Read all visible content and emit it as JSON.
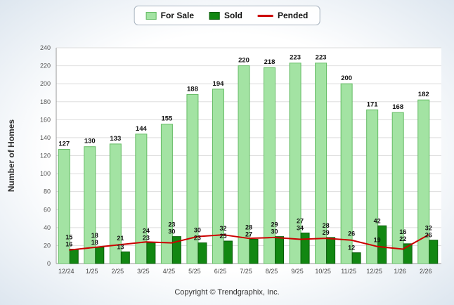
{
  "page": {
    "copyright": "Copyright © Trendgraphix, Inc."
  },
  "chart_data": {
    "type": "bar",
    "title": "",
    "xlabel": "",
    "ylabel": "Number of Homes",
    "ylim": [
      0,
      240
    ],
    "ytick_step": 20,
    "grid": true,
    "legend_position": "top-center",
    "categories": [
      "12/24",
      "1/25",
      "2/25",
      "3/25",
      "4/25",
      "5/25",
      "6/25",
      "7/25",
      "8/25",
      "9/25",
      "10/25",
      "11/25",
      "12/25",
      "1/26",
      "2/26"
    ],
    "series": [
      {
        "name": "For Sale",
        "kind": "bar",
        "color": "#A3E3A3",
        "border": "#64BB64",
        "values": [
          127,
          130,
          133,
          144,
          155,
          188,
          194,
          220,
          218,
          223,
          223,
          200,
          171,
          168,
          182
        ]
      },
      {
        "name": "Sold",
        "kind": "bar",
        "color": "#128712",
        "border": "#0A5D0A",
        "values": [
          16,
          18,
          13,
          23,
          30,
          23,
          25,
          27,
          30,
          34,
          29,
          12,
          42,
          22,
          26
        ]
      },
      {
        "name": "Pended",
        "kind": "line",
        "color": "#CC0000",
        "values": [
          15,
          18,
          21,
          24,
          23,
          30,
          32,
          28,
          29,
          27,
          28,
          26,
          19,
          16,
          32
        ]
      }
    ],
    "label_color": "#111111",
    "axis_color": "#999999",
    "grid_color": "#DDDDDD",
    "tick_label_color": "#555555",
    "plot_bg": "#FFFFFF"
  }
}
